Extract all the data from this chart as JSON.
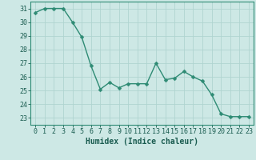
{
  "x": [
    0,
    1,
    2,
    3,
    4,
    5,
    6,
    7,
    8,
    9,
    10,
    11,
    12,
    13,
    14,
    15,
    16,
    17,
    18,
    19,
    20,
    21,
    22,
    23
  ],
  "y": [
    30.7,
    31.0,
    31.0,
    31.0,
    30.0,
    28.9,
    26.8,
    25.1,
    25.6,
    25.2,
    25.5,
    25.5,
    25.5,
    27.0,
    25.8,
    25.9,
    26.4,
    26.0,
    25.7,
    24.7,
    23.3,
    23.1,
    23.1,
    23.1
  ],
  "line_color": "#2e8b74",
  "marker": "D",
  "marker_size": 2.5,
  "bg_color": "#cde8e5",
  "grid_color": "#b0d4d0",
  "xlabel": "Humidex (Indice chaleur)",
  "ylim": [
    22.5,
    31.5
  ],
  "xlim": [
    -0.5,
    23.5
  ],
  "yticks": [
    23,
    24,
    25,
    26,
    27,
    28,
    29,
    30,
    31
  ],
  "xticks": [
    0,
    1,
    2,
    3,
    4,
    5,
    6,
    7,
    8,
    9,
    10,
    11,
    12,
    13,
    14,
    15,
    16,
    17,
    18,
    19,
    20,
    21,
    22,
    23
  ],
  "font_color": "#1a5c50",
  "xlabel_fontsize": 7,
  "tick_fontsize": 6,
  "line_width": 1.0
}
